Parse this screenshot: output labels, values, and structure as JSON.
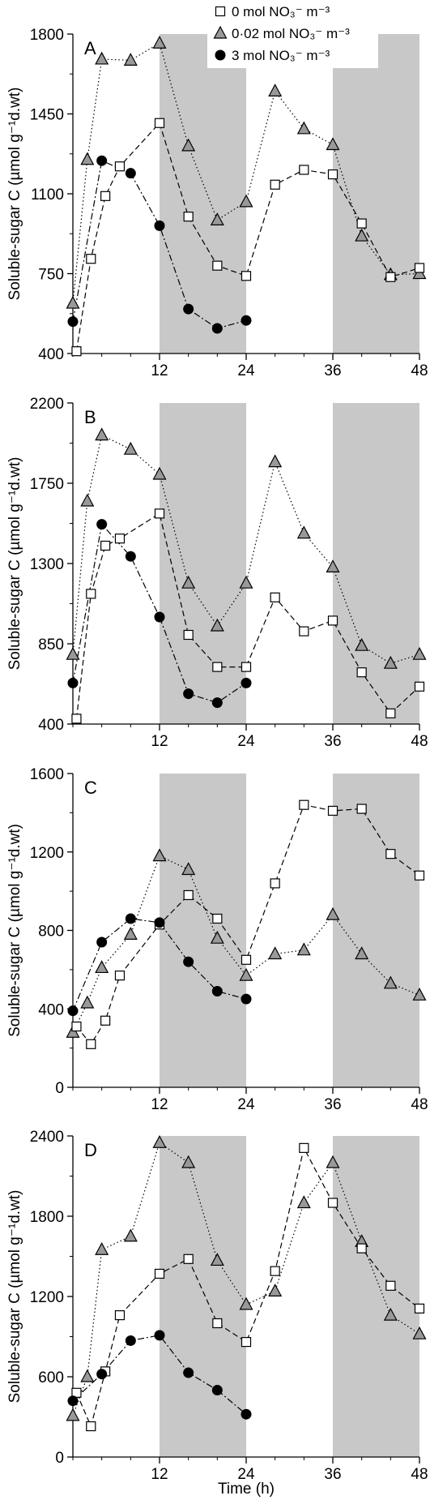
{
  "chart_data": {
    "type": "line",
    "ylabel": "Soluble-sugar C (µmol g⁻¹d.wt)",
    "xlabel": "Time (h)",
    "x_ticks": [
      12,
      24,
      36,
      48
    ],
    "dark_periods_h": [
      [
        12,
        24
      ],
      [
        36,
        48
      ]
    ],
    "legend": {
      "placement": "top-right",
      "entries": [
        {
          "series": "s0",
          "label": "0 mol NO₃⁻ m⁻³"
        },
        {
          "series": "s002",
          "label": "0·02 mol NO₃⁻ m⁻³"
        },
        {
          "series": "s3",
          "label": "3 mol NO₃⁻ m⁻³"
        }
      ]
    },
    "series_styles": {
      "s0": {
        "marker": "square",
        "fill": "#ffffff",
        "dash": "7,4"
      },
      "s002": {
        "marker": "triangle",
        "fill": "#999999",
        "dash": "1.5,3"
      },
      "s3": {
        "marker": "circle",
        "fill": "#000000",
        "dash": "8,3,2,3"
      }
    },
    "panels": [
      {
        "label": "A",
        "ylim": [
          400,
          1800
        ],
        "yticks": [
          400,
          750,
          1100,
          1450,
          1800
        ],
        "series": [
          {
            "id": "s0",
            "points": [
              [
                0.5,
                410
              ],
              [
                2.5,
                815
              ],
              [
                4.5,
                1090
              ],
              [
                6.5,
                1220
              ],
              [
                12,
                1410
              ],
              [
                16,
                1000
              ],
              [
                20,
                785
              ],
              [
                24,
                740
              ],
              [
                28,
                1140
              ],
              [
                32,
                1205
              ],
              [
                36,
                1185
              ],
              [
                40,
                970
              ],
              [
                44,
                735
              ],
              [
                48,
                775
              ]
            ]
          },
          {
            "id": "s002",
            "points": [
              [
                0,
                620
              ],
              [
                2,
                1250
              ],
              [
                4,
                1690
              ],
              [
                8,
                1685
              ],
              [
                12,
                1760
              ],
              [
                16,
                1310
              ],
              [
                20,
                985
              ],
              [
                24,
                1065
              ],
              [
                28,
                1550
              ],
              [
                32,
                1385
              ],
              [
                36,
                1315
              ],
              [
                40,
                915
              ],
              [
                44,
                745
              ],
              [
                48,
                750
              ]
            ]
          },
          {
            "id": "s3",
            "points": [
              [
                0,
                540
              ],
              [
                4,
                1245
              ],
              [
                8,
                1190
              ],
              [
                12,
                960
              ],
              [
                16,
                595
              ],
              [
                20,
                510
              ],
              [
                24,
                545
              ]
            ]
          }
        ]
      },
      {
        "label": "B",
        "ylim": [
          400,
          2200
        ],
        "yticks": [
          400,
          850,
          1300,
          1750,
          2200
        ],
        "series": [
          {
            "id": "s0",
            "points": [
              [
                0.5,
                430
              ],
              [
                2.5,
                1130
              ],
              [
                4.5,
                1400
              ],
              [
                6.5,
                1440
              ],
              [
                12,
                1580
              ],
              [
                16,
                900
              ],
              [
                20,
                720
              ],
              [
                24,
                720
              ],
              [
                28,
                1110
              ],
              [
                32,
                920
              ],
              [
                36,
                980
              ],
              [
                40,
                690
              ],
              [
                44,
                460
              ],
              [
                48,
                610
              ]
            ]
          },
          {
            "id": "s002",
            "points": [
              [
                0,
                790
              ],
              [
                2,
                1650
              ],
              [
                4,
                2020
              ],
              [
                8,
                1940
              ],
              [
                12,
                1800
              ],
              [
                16,
                1190
              ],
              [
                20,
                950
              ],
              [
                24,
                1190
              ],
              [
                28,
                1870
              ],
              [
                32,
                1470
              ],
              [
                36,
                1280
              ],
              [
                40,
                840
              ],
              [
                44,
                740
              ],
              [
                48,
                790
              ]
            ]
          },
          {
            "id": "s3",
            "points": [
              [
                0,
                630
              ],
              [
                4,
                1520
              ],
              [
                8,
                1340
              ],
              [
                12,
                1000
              ],
              [
                16,
                570
              ],
              [
                20,
                520
              ],
              [
                24,
                630
              ]
            ]
          }
        ]
      },
      {
        "label": "C",
        "ylim": [
          0,
          1600
        ],
        "yticks": [
          0,
          400,
          800,
          1200,
          1600
        ],
        "series": [
          {
            "id": "s0",
            "points": [
              [
                0.5,
                310
              ],
              [
                2.5,
                220
              ],
              [
                4.5,
                340
              ],
              [
                6.5,
                570
              ],
              [
                12,
                830
              ],
              [
                16,
                980
              ],
              [
                20,
                860
              ],
              [
                24,
                650
              ],
              [
                28,
                1040
              ],
              [
                32,
                1440
              ],
              [
                36,
                1410
              ],
              [
                40,
                1420
              ],
              [
                44,
                1190
              ],
              [
                48,
                1080
              ]
            ]
          },
          {
            "id": "s002",
            "points": [
              [
                0,
                280
              ],
              [
                2,
                430
              ],
              [
                4,
                610
              ],
              [
                8,
                780
              ],
              [
                12,
                1180
              ],
              [
                16,
                1110
              ],
              [
                20,
                760
              ],
              [
                24,
                570
              ],
              [
                28,
                680
              ],
              [
                32,
                700
              ],
              [
                36,
                880
              ],
              [
                40,
                680
              ],
              [
                44,
                530
              ],
              [
                48,
                470
              ]
            ]
          },
          {
            "id": "s3",
            "points": [
              [
                0,
                390
              ],
              [
                4,
                740
              ],
              [
                8,
                860
              ],
              [
                12,
                840
              ],
              [
                16,
                640
              ],
              [
                20,
                490
              ],
              [
                24,
                450
              ]
            ]
          }
        ]
      },
      {
        "label": "D",
        "ylim": [
          0,
          2400
        ],
        "yticks": [
          0,
          600,
          1200,
          1800,
          2400
        ],
        "series": [
          {
            "id": "s0",
            "points": [
              [
                0.5,
                480
              ],
              [
                2.5,
                230
              ],
              [
                4.5,
                640
              ],
              [
                6.5,
                1060
              ],
              [
                12,
                1370
              ],
              [
                16,
                1480
              ],
              [
                20,
                1000
              ],
              [
                24,
                860
              ],
              [
                28,
                1390
              ],
              [
                32,
                2310
              ],
              [
                36,
                1900
              ],
              [
                40,
                1560
              ],
              [
                44,
                1280
              ],
              [
                48,
                1110
              ]
            ]
          },
          {
            "id": "s002",
            "points": [
              [
                0,
                310
              ],
              [
                2,
                600
              ],
              [
                4,
                1550
              ],
              [
                8,
                1650
              ],
              [
                12,
                2350
              ],
              [
                16,
                2200
              ],
              [
                20,
                1470
              ],
              [
                24,
                1140
              ],
              [
                28,
                1240
              ],
              [
                32,
                1900
              ],
              [
                36,
                2200
              ],
              [
                40,
                1610
              ],
              [
                44,
                1060
              ],
              [
                48,
                920
              ]
            ]
          },
          {
            "id": "s3",
            "points": [
              [
                0,
                420
              ],
              [
                4,
                620
              ],
              [
                8,
                870
              ],
              [
                12,
                910
              ],
              [
                16,
                630
              ],
              [
                20,
                500
              ],
              [
                24,
                320
              ]
            ]
          }
        ]
      }
    ]
  }
}
